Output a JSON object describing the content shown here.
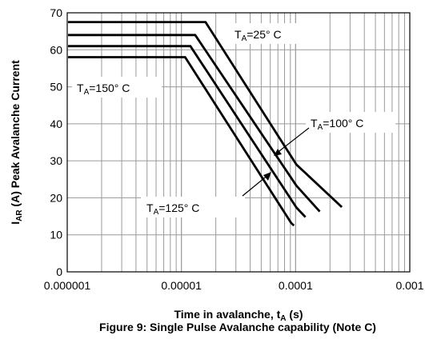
{
  "chart_data": {
    "type": "line",
    "title": "",
    "caption": "Figure 9: Single Pulse Avalanche capability (Note C)",
    "xlabel_main": "Time in avalanche, t",
    "xlabel_sub": "A",
    "xlabel_unit": " (s)",
    "ylabel_main": "I",
    "ylabel_sub": "AR",
    "ylabel_rest": " (A) Peak Avalanche Current",
    "xscale": "log",
    "xlim": [
      1e-06,
      0.001
    ],
    "ylim": [
      0,
      70
    ],
    "grid": true,
    "x_tick_labels": [
      "0.000001",
      "0.00001",
      "0.0001",
      "0.001"
    ],
    "y_tick_labels": [
      "0",
      "10",
      "20",
      "30",
      "40",
      "50",
      "60",
      "70"
    ],
    "series": [
      {
        "name": "T_A=25°C",
        "x": [
          1e-06,
          1.6e-05,
          0.0001,
          0.00025
        ],
        "y": [
          67.5,
          67.5,
          29,
          17.5
        ]
      },
      {
        "name": "T_A=100°C",
        "x": [
          1e-06,
          1.3e-05,
          0.0001,
          0.00016
        ],
        "y": [
          64,
          64,
          23.3,
          16.3
        ]
      },
      {
        "name": "T_A=125°C",
        "x": [
          1e-06,
          1.18e-05,
          0.0001,
          0.00012
        ],
        "y": [
          61,
          61,
          17.4,
          14.8
        ]
      },
      {
        "name": "T_A=150°C",
        "x": [
          1e-06,
          1.06e-05,
          9e-05,
          9.5e-05
        ],
        "y": [
          58,
          58,
          13.2,
          12.5
        ]
      }
    ],
    "annotations": [
      {
        "main": "T",
        "sub": "A",
        "rest": "=25° C"
      },
      {
        "main": "T",
        "sub": "A",
        "rest": "=150° C"
      },
      {
        "main": "T",
        "sub": "A",
        "rest": "=100° C"
      },
      {
        "main": "T",
        "sub": "A",
        "rest": "=125° C"
      }
    ]
  }
}
